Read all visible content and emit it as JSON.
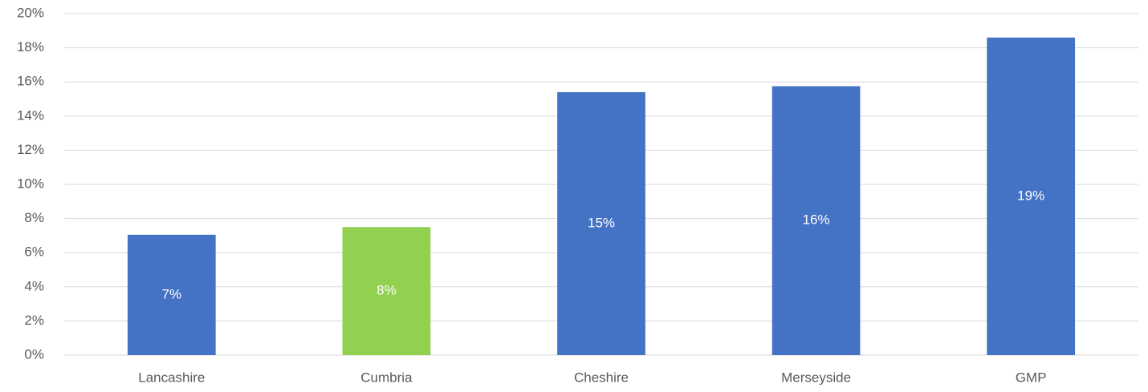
{
  "chart_data": {
    "type": "bar",
    "categories": [
      "Lancashire",
      "Cumbria",
      "Cheshire",
      "Merseyside",
      "GMP"
    ],
    "values": [
      7.05,
      7.5,
      15.4,
      15.75,
      18.6
    ],
    "value_labels": [
      "7%",
      "8%",
      "15%",
      "16%",
      "19%"
    ],
    "colors": [
      "#4472c4",
      "#92d050",
      "#4472c4",
      "#4472c4",
      "#4472c4"
    ],
    "ylim": [
      0,
      20
    ],
    "yticks": [
      {
        "value": 0,
        "label": "0%"
      },
      {
        "value": 2,
        "label": "2%"
      },
      {
        "value": 4,
        "label": "4%"
      },
      {
        "value": 6,
        "label": "6%"
      },
      {
        "value": 8,
        "label": "8%"
      },
      {
        "value": 10,
        "label": "10%"
      },
      {
        "value": 12,
        "label": "12%"
      },
      {
        "value": 14,
        "label": "14%"
      },
      {
        "value": 16,
        "label": "16%"
      },
      {
        "value": 18,
        "label": "18%"
      },
      {
        "value": 20,
        "label": "20%"
      }
    ],
    "grid": true
  }
}
